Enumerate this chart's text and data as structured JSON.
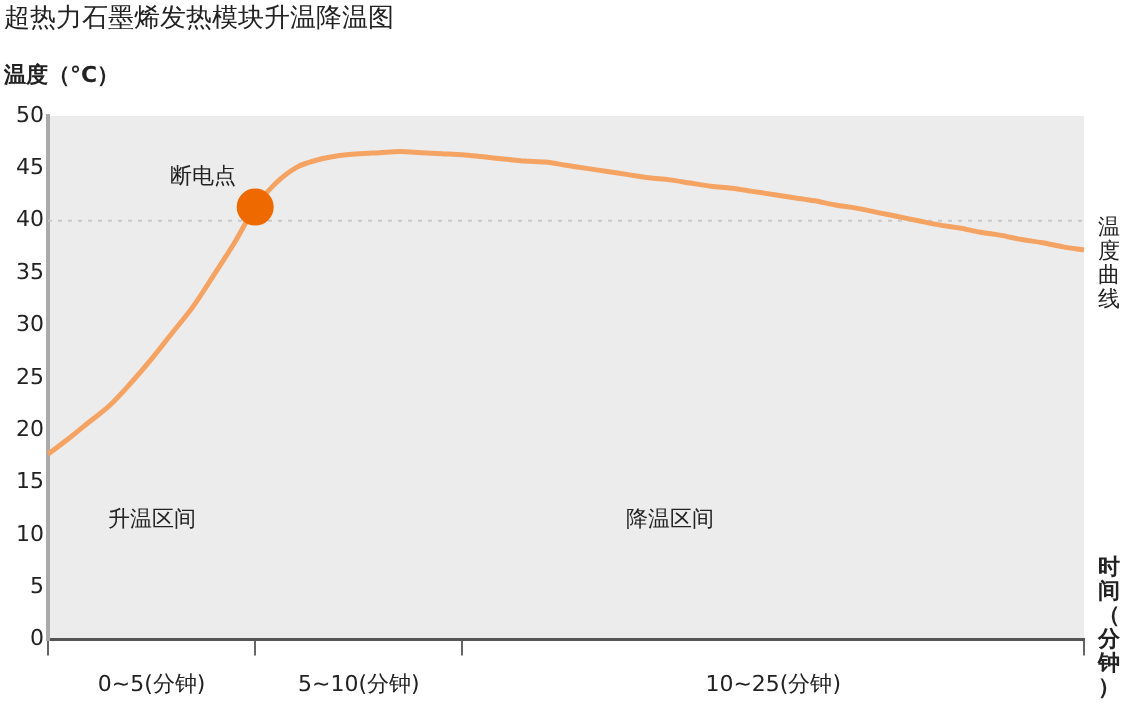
{
  "chart_data": {
    "type": "line",
    "title": "超热力石墨烯发热模块升温降温图",
    "ylabel": "温度（°C）",
    "xlabel": "时间（分钟）",
    "categories": [
      null,
      null,
      null,
      null,
      null,
      "0~5(分钟)",
      null,
      null,
      null,
      null,
      null,
      null,
      null,
      null,
      null,
      "5~10(分钟)",
      null,
      null,
      null,
      null,
      null,
      null,
      null,
      null,
      null,
      null,
      null,
      null,
      null,
      null,
      null,
      null,
      null,
      null,
      null,
      "10~25(分钟)",
      null,
      null,
      null,
      null,
      null,
      null,
      null,
      null,
      null,
      null,
      null,
      null,
      null,
      null,
      null
    ],
    "ylim": [
      0,
      50
    ],
    "yticks": [
      0,
      5,
      10,
      15,
      20,
      25,
      30,
      35,
      40,
      45,
      50
    ],
    "grid": false,
    "legend": false,
    "series": [
      {
        "name": "温度曲线",
        "color": "#f5a362",
        "marker": "none",
        "values": [
          17.7,
          19.2,
          20.8,
          22.4,
          24.5,
          26.8,
          29.3,
          31.8,
          34.8,
          37.9,
          41.3,
          43.6,
          45.1,
          45.8,
          46.2,
          46.4,
          46.5,
          46.6,
          46.5,
          46.4,
          46.3,
          46.1,
          45.9,
          45.7,
          45.6,
          45.3,
          45.0,
          44.7,
          44.4,
          44.1,
          43.9,
          43.6,
          43.3,
          43.1,
          42.8,
          42.5,
          42.2,
          41.9,
          41.5,
          41.2,
          40.8,
          40.4,
          40.0,
          39.6,
          39.3,
          38.9,
          38.6,
          38.2,
          37.9,
          37.5,
          37.2
        ]
      },
      {
        "color": "#ee6a00",
        "marker": "circle",
        "values": [
          null,
          null,
          null,
          null,
          null,
          null,
          null,
          null,
          null,
          null,
          41.3,
          null,
          null,
          null,
          null,
          null,
          null,
          null,
          null,
          null,
          null,
          null,
          null,
          null,
          null,
          null,
          null,
          null,
          null,
          null,
          null,
          null,
          null,
          null,
          null,
          null,
          null,
          null,
          null,
          null,
          null,
          null,
          null,
          null,
          null,
          null,
          null,
          null,
          null,
          null,
          null
        ]
      }
    ],
    "ref_lines": [
      {
        "axis": "y",
        "value": 40,
        "color": "#c8c8c8",
        "line_style": "dotted"
      }
    ],
    "annotations": [
      "断电点",
      "升温区间",
      "降温区间"
    ]
  }
}
